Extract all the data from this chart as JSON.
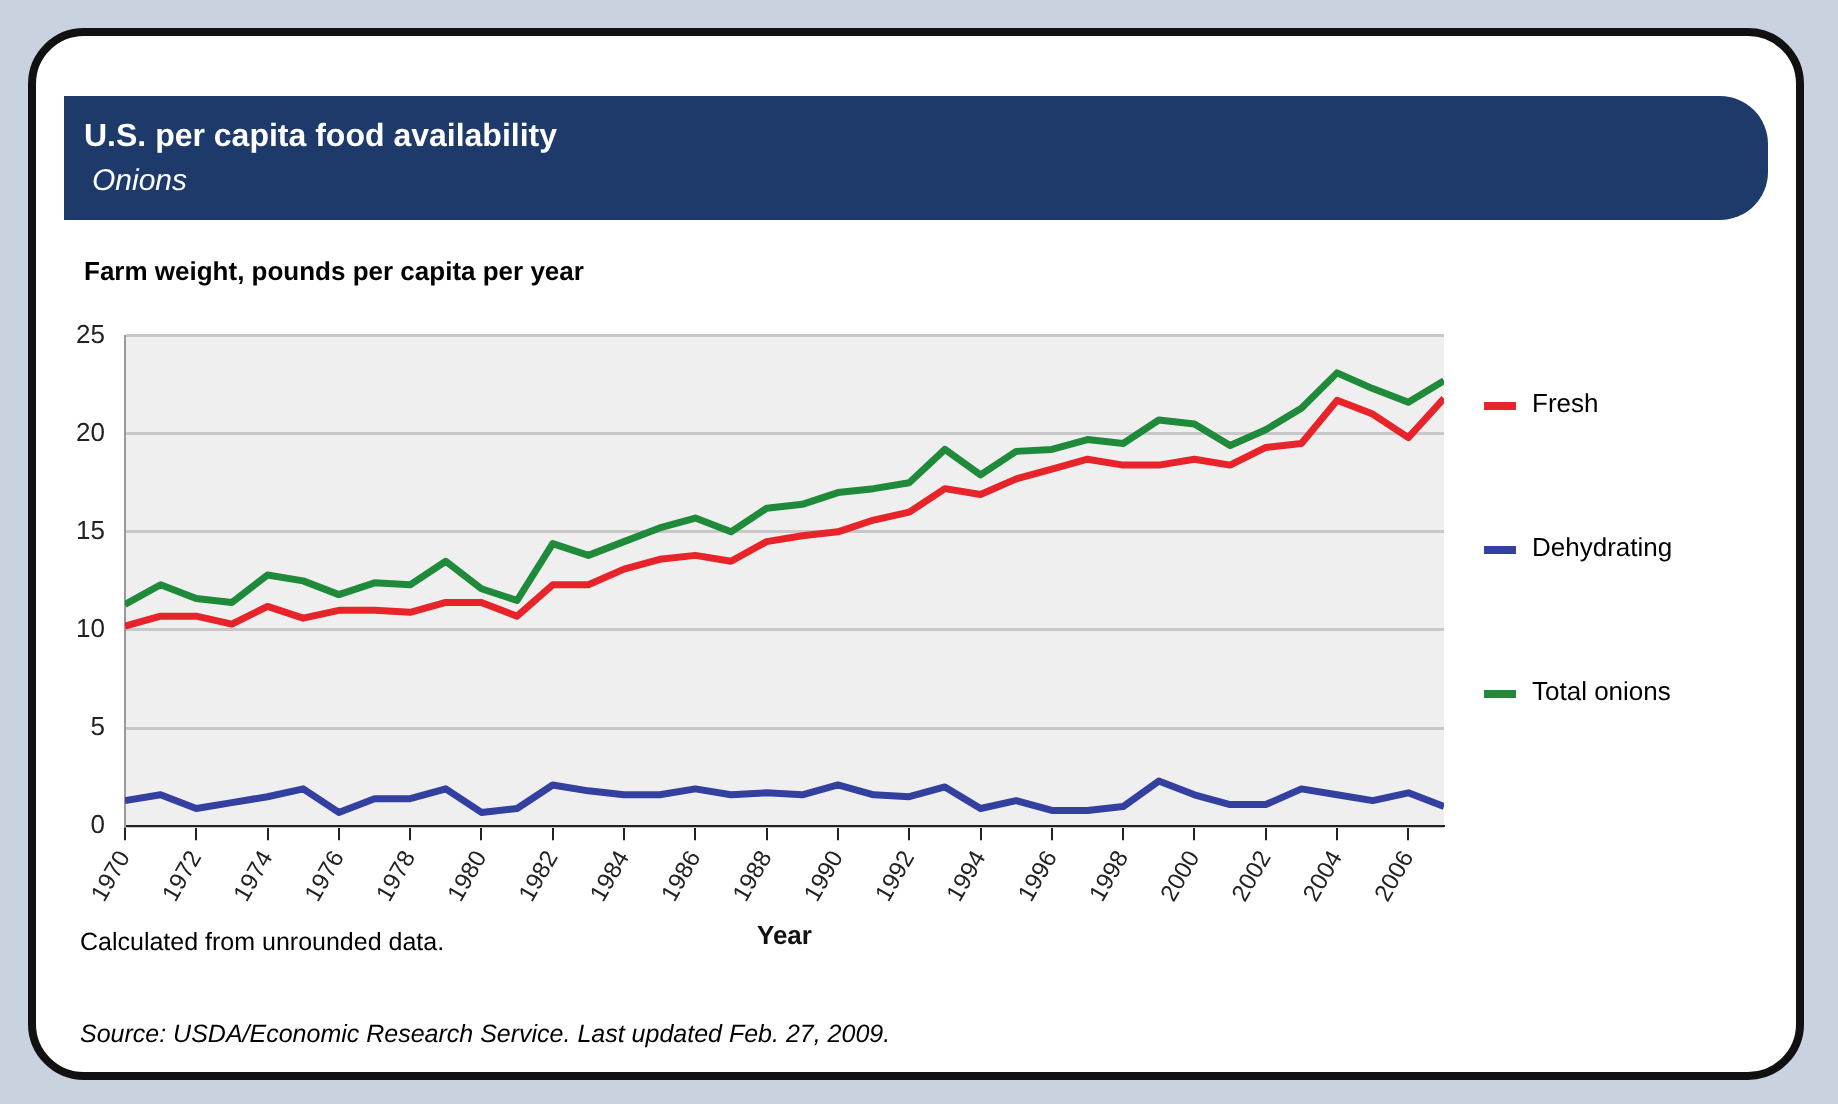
{
  "chart_data": {
    "type": "line",
    "title": "U.S. per capita food availability",
    "subtitle": "Onions",
    "ylabel": "Farm weight, pounds per capita per year",
    "xlabel": "Year",
    "x": [
      1970,
      1971,
      1972,
      1973,
      1974,
      1975,
      1976,
      1977,
      1978,
      1979,
      1980,
      1981,
      1982,
      1983,
      1984,
      1985,
      1986,
      1987,
      1988,
      1989,
      1990,
      1991,
      1992,
      1993,
      1994,
      1995,
      1996,
      1997,
      1998,
      1999,
      2000,
      2001,
      2002,
      2003,
      2004,
      2005,
      2006,
      2007
    ],
    "series": [
      {
        "name": "Fresh",
        "color": "#e8242b",
        "values": [
          10.2,
          10.7,
          10.7,
          10.3,
          11.2,
          10.6,
          11.0,
          11.0,
          10.9,
          11.4,
          11.4,
          10.7,
          12.3,
          12.3,
          13.1,
          13.6,
          13.8,
          13.5,
          14.5,
          14.8,
          15.0,
          15.6,
          16.0,
          17.2,
          16.9,
          17.7,
          18.2,
          18.7,
          18.4,
          18.4,
          18.7,
          18.4,
          19.3,
          19.5,
          21.7,
          21.0,
          19.8,
          21.8
        ]
      },
      {
        "name": "Dehydrating",
        "color": "#3340a0",
        "values": [
          1.3,
          1.6,
          0.9,
          1.2,
          1.5,
          1.9,
          0.7,
          1.4,
          1.4,
          1.9,
          0.7,
          0.9,
          2.1,
          1.8,
          1.6,
          1.6,
          1.9,
          1.6,
          1.7,
          1.6,
          2.1,
          1.6,
          1.5,
          2.0,
          0.9,
          1.3,
          0.8,
          0.8,
          1.0,
          2.3,
          1.6,
          1.1,
          1.1,
          1.9,
          1.6,
          1.3,
          1.7,
          1.0
        ]
      },
      {
        "name": "Total onions",
        "color": "#1e8a3a",
        "values": [
          11.3,
          12.3,
          11.6,
          11.4,
          12.8,
          12.5,
          11.8,
          12.4,
          12.3,
          13.5,
          12.1,
          11.5,
          14.4,
          13.8,
          14.5,
          15.2,
          15.7,
          15.0,
          16.2,
          16.4,
          17.0,
          17.2,
          17.5,
          19.2,
          17.9,
          19.1,
          19.2,
          19.7,
          19.5,
          20.7,
          20.5,
          19.4,
          20.2,
          21.3,
          23.1,
          22.3,
          21.6,
          22.7
        ]
      }
    ],
    "xlim": [
      1970,
      2007
    ],
    "xticks": [
      1970,
      1972,
      1974,
      1976,
      1978,
      1980,
      1982,
      1984,
      1986,
      1988,
      1990,
      1992,
      1994,
      1996,
      1998,
      2000,
      2002,
      2004,
      2006
    ],
    "ylim": [
      0,
      25
    ],
    "yticks": [
      0,
      5,
      10,
      15,
      20,
      25
    ],
    "grid": "y",
    "legend": "right",
    "marker": "none",
    "line_style": "solid",
    "annotations": [
      "Calculated from unrounded data.",
      "Source: USDA/Economic Research Service. Last updated Feb. 27, 2009."
    ]
  }
}
